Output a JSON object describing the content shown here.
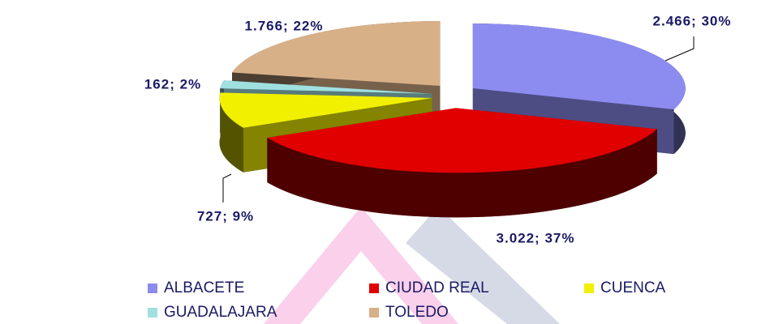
{
  "chart_data": {
    "type": "pie",
    "categories": [
      "ALBACETE",
      "CIUDAD REAL",
      "CUENCA",
      "GUADALAJARA",
      "TOLEDO"
    ],
    "values": [
      2466,
      3022,
      727,
      162,
      1766
    ],
    "value_labels": [
      "2.466; 30%",
      "3.022; 37%",
      "727; 9%",
      "162; 2%",
      "1.766; 22%"
    ],
    "colors": [
      "#8c8cf0",
      "#e00000",
      "#f0f000",
      "#a0e0e0",
      "#d8b088"
    ],
    "legend": "bottom"
  }
}
